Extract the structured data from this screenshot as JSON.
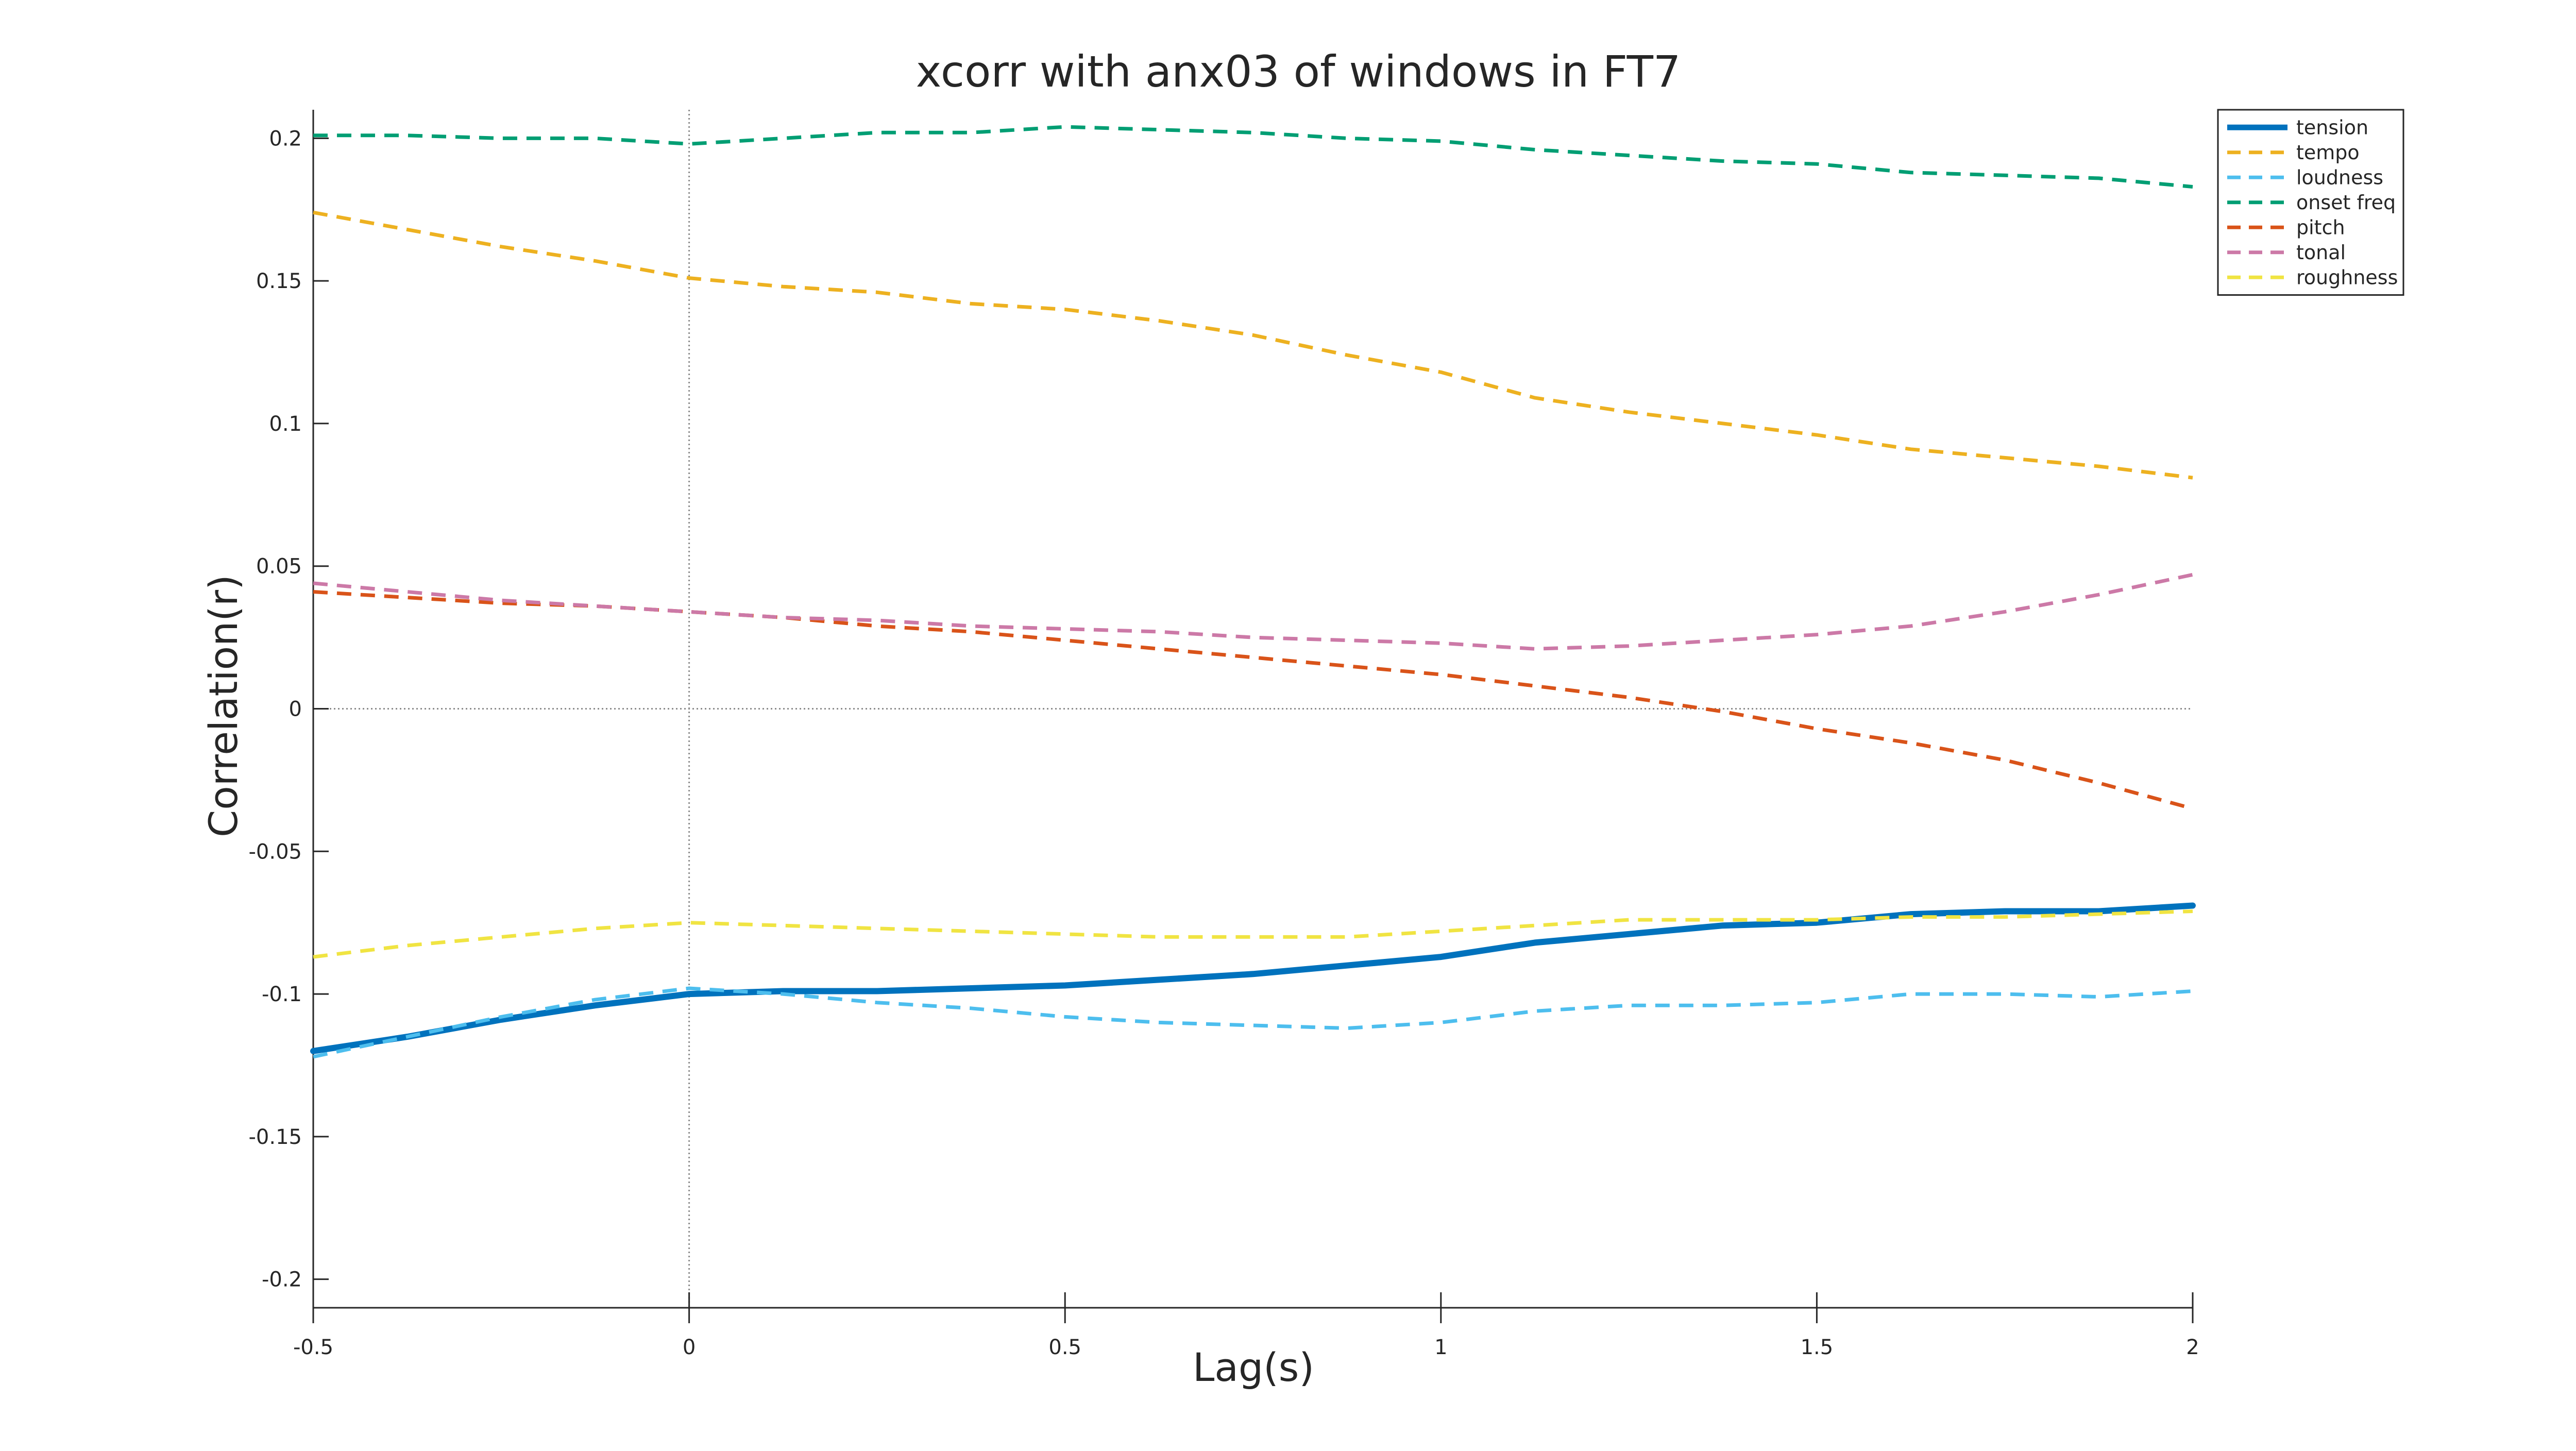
{
  "chart_data": {
    "type": "line",
    "title": "xcorr with anx03 of windows in FT7",
    "xlabel": "Lag(s)",
    "ylabel": "Correlation(r)",
    "xlim": [
      -0.5,
      2
    ],
    "ylim": [
      -0.21,
      0.21
    ],
    "x_ticks": [
      -0.5,
      0,
      0.5,
      1,
      1.5,
      2
    ],
    "x_tick_labels": [
      "-0.5",
      "0",
      "0.5",
      "1",
      "1.5",
      "2"
    ],
    "y_ticks": [
      0.2,
      0.15,
      0.1,
      0.05,
      0,
      -0.05,
      -0.1,
      -0.15,
      -0.2
    ],
    "y_tick_labels": [
      "0.2",
      "0.15",
      "0.1",
      "0.05",
      "0",
      "-0.05",
      "-0.1",
      "-0.15",
      "-0.2"
    ],
    "grid": false,
    "reference_lines": {
      "x": 0,
      "y": 0,
      "style": "dotted"
    },
    "legend_position": "top-right",
    "x": [
      -0.5,
      -0.375,
      -0.25,
      -0.125,
      0,
      0.125,
      0.25,
      0.375,
      0.5,
      0.625,
      0.75,
      0.875,
      1,
      1.125,
      1.25,
      1.375,
      1.5,
      1.625,
      1.75,
      1.875,
      2
    ],
    "series": [
      {
        "name": "tension",
        "color": "#0072BD",
        "style": "solid",
        "values": [
          -0.12,
          -0.115,
          -0.109,
          -0.104,
          -0.1,
          -0.099,
          -0.099,
          -0.098,
          -0.097,
          -0.095,
          -0.093,
          -0.09,
          -0.087,
          -0.082,
          -0.079,
          -0.076,
          -0.075,
          -0.072,
          -0.071,
          -0.071,
          -0.069
        ]
      },
      {
        "name": "tempo",
        "color": "#EDB120",
        "style": "dashed",
        "values": [
          0.174,
          0.168,
          0.162,
          0.157,
          0.151,
          0.148,
          0.146,
          0.142,
          0.14,
          0.136,
          0.131,
          0.124,
          0.118,
          0.109,
          0.104,
          0.1,
          0.096,
          0.091,
          0.088,
          0.085,
          0.081
        ]
      },
      {
        "name": "loudness",
        "color": "#4DBEEE",
        "style": "dashed",
        "values": [
          -0.122,
          -0.115,
          -0.108,
          -0.102,
          -0.098,
          -0.1,
          -0.103,
          -0.105,
          -0.108,
          -0.11,
          -0.111,
          -0.112,
          -0.11,
          -0.106,
          -0.104,
          -0.104,
          -0.103,
          -0.1,
          -0.1,
          -0.101,
          -0.099
        ]
      },
      {
        "name": "onset freq",
        "color": "#009E73",
        "style": "dashed",
        "values": [
          0.201,
          0.201,
          0.2,
          0.2,
          0.198,
          0.2,
          0.202,
          0.202,
          0.204,
          0.203,
          0.202,
          0.2,
          0.199,
          0.196,
          0.194,
          0.192,
          0.191,
          0.188,
          0.187,
          0.186,
          0.183
        ]
      },
      {
        "name": "pitch",
        "color": "#D95319",
        "style": "dashed",
        "values": [
          0.041,
          0.039,
          0.037,
          0.036,
          0.034,
          0.032,
          0.029,
          0.027,
          0.024,
          0.021,
          0.018,
          0.015,
          0.012,
          0.008,
          0.004,
          -0.001,
          -0.007,
          -0.012,
          -0.018,
          -0.026,
          -0.035
        ]
      },
      {
        "name": "tonal",
        "color": "#CC79A7",
        "style": "dashed",
        "values": [
          0.044,
          0.041,
          0.038,
          0.036,
          0.034,
          0.032,
          0.031,
          0.029,
          0.028,
          0.027,
          0.025,
          0.024,
          0.023,
          0.021,
          0.022,
          0.024,
          0.026,
          0.029,
          0.034,
          0.04,
          0.047
        ]
      },
      {
        "name": "roughness",
        "color": "#F0E442",
        "style": "dashed",
        "values": [
          -0.087,
          -0.083,
          -0.08,
          -0.077,
          -0.075,
          -0.076,
          -0.077,
          -0.078,
          -0.079,
          -0.08,
          -0.08,
          -0.08,
          -0.078,
          -0.076,
          -0.074,
          -0.074,
          -0.074,
          -0.073,
          -0.073,
          -0.072,
          -0.071
        ]
      }
    ]
  }
}
